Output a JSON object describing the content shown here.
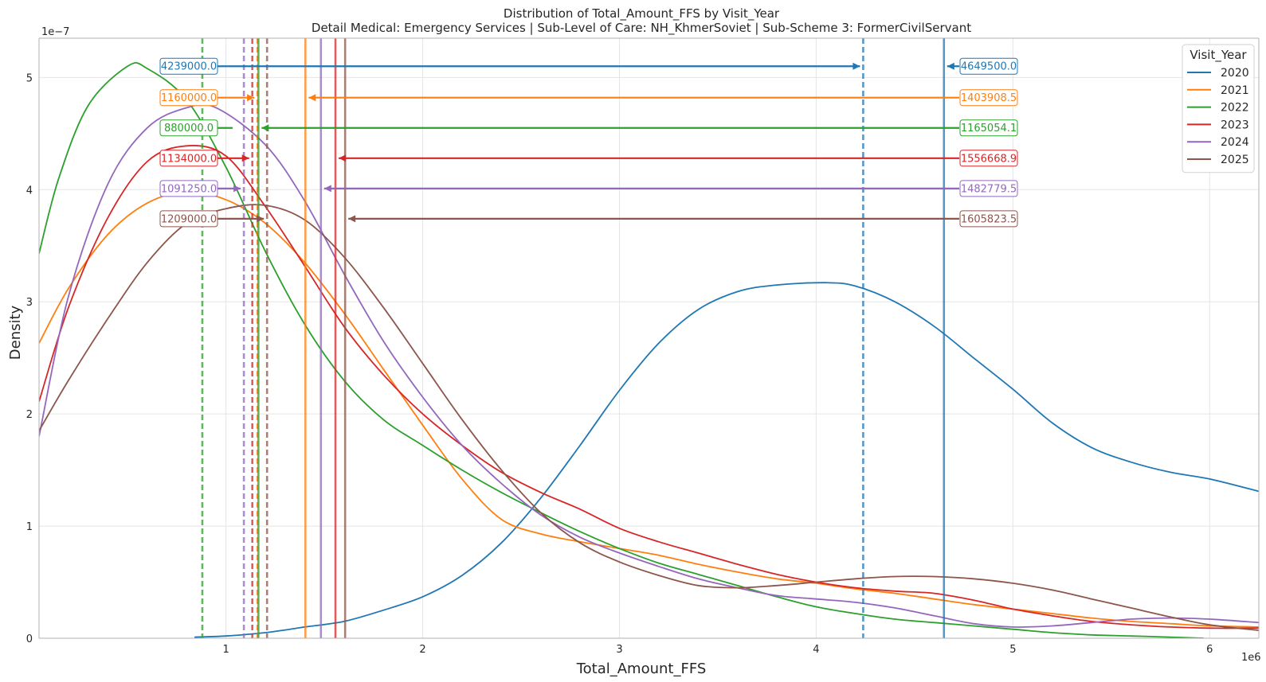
{
  "chart_data": {
    "type": "line",
    "title": "Distribution of Total_Amount_FFS by Visit_Year",
    "subtitle": "Detail Medical: Emergency Services | Sub-Level of Care: NH_KhmerSoviet | Sub-Scheme 3: FormerCivilServant",
    "xlabel": "Total_Amount_FFS",
    "ylabel": "Density",
    "x_scale_label": "1e6",
    "y_scale_label": "1e−7",
    "xlim": [
      0.05,
      6.25
    ],
    "ylim": [
      0,
      5.35
    ],
    "x_ticks": [
      1,
      2,
      3,
      4,
      5,
      6
    ],
    "x_tick_labels": [
      "1",
      "2",
      "3",
      "4",
      "5",
      "6"
    ],
    "y_ticks": [
      0,
      1,
      2,
      3,
      4,
      5
    ],
    "y_tick_labels": [
      "0",
      "1",
      "2",
      "3",
      "4",
      "5"
    ],
    "grid": true,
    "legend": {
      "title": "Visit_Year",
      "position": "top-right"
    },
    "series": [
      {
        "name": "2020",
        "color": "#1f77b4",
        "median": 4239000.0,
        "mean": 4649500.0,
        "median_label": "4239000.0",
        "mean_label": "4649500.0",
        "arrow_y": 5.1,
        "points": [
          [
            0.84,
            0.01
          ],
          [
            1.0,
            0.02
          ],
          [
            1.2,
            0.05
          ],
          [
            1.4,
            0.1
          ],
          [
            1.6,
            0.15
          ],
          [
            1.8,
            0.25
          ],
          [
            2.0,
            0.37
          ],
          [
            2.2,
            0.56
          ],
          [
            2.4,
            0.85
          ],
          [
            2.6,
            1.25
          ],
          [
            2.8,
            1.72
          ],
          [
            3.0,
            2.21
          ],
          [
            3.2,
            2.63
          ],
          [
            3.4,
            2.93
          ],
          [
            3.6,
            3.09
          ],
          [
            3.8,
            3.15
          ],
          [
            4.05,
            3.17
          ],
          [
            4.2,
            3.14
          ],
          [
            4.4,
            3.0
          ],
          [
            4.6,
            2.78
          ],
          [
            4.8,
            2.5
          ],
          [
            5.0,
            2.22
          ],
          [
            5.2,
            1.92
          ],
          [
            5.4,
            1.7
          ],
          [
            5.6,
            1.57
          ],
          [
            5.8,
            1.48
          ],
          [
            6.0,
            1.42
          ],
          [
            6.25,
            1.31
          ]
        ]
      },
      {
        "name": "2021",
        "color": "#ff7f0e",
        "median": 1160000.0,
        "mean": 1403908.5,
        "median_label": "1160000.0",
        "mean_label": "1403908.5",
        "arrow_y": 4.82,
        "points": [
          [
            0.05,
            2.63
          ],
          [
            0.2,
            3.12
          ],
          [
            0.4,
            3.6
          ],
          [
            0.6,
            3.88
          ],
          [
            0.8,
            3.98
          ],
          [
            1.0,
            3.91
          ],
          [
            1.2,
            3.7
          ],
          [
            1.4,
            3.35
          ],
          [
            1.6,
            2.9
          ],
          [
            1.8,
            2.4
          ],
          [
            2.0,
            1.9
          ],
          [
            2.2,
            1.42
          ],
          [
            2.4,
            1.06
          ],
          [
            2.6,
            0.93
          ],
          [
            2.8,
            0.86
          ],
          [
            3.0,
            0.8
          ],
          [
            3.2,
            0.74
          ],
          [
            3.4,
            0.66
          ],
          [
            3.6,
            0.59
          ],
          [
            3.8,
            0.53
          ],
          [
            4.0,
            0.49
          ],
          [
            4.2,
            0.44
          ],
          [
            4.4,
            0.4
          ],
          [
            4.6,
            0.35
          ],
          [
            4.8,
            0.3
          ],
          [
            5.0,
            0.26
          ],
          [
            5.2,
            0.22
          ],
          [
            5.4,
            0.18
          ],
          [
            5.6,
            0.15
          ],
          [
            5.8,
            0.13
          ],
          [
            6.0,
            0.11
          ],
          [
            6.25,
            0.1
          ]
        ]
      },
      {
        "name": "2022",
        "color": "#2ca02c",
        "median": 880000.0,
        "mean": 1165054.1,
        "median_label": "880000.0",
        "mean_label": "1165054.1",
        "arrow_y": 4.55,
        "points": [
          [
            0.05,
            3.43
          ],
          [
            0.15,
            4.1
          ],
          [
            0.3,
            4.75
          ],
          [
            0.5,
            5.1
          ],
          [
            0.6,
            5.08
          ],
          [
            0.8,
            4.8
          ],
          [
            1.0,
            4.2
          ],
          [
            1.2,
            3.45
          ],
          [
            1.4,
            2.8
          ],
          [
            1.6,
            2.3
          ],
          [
            1.8,
            1.95
          ],
          [
            2.0,
            1.72
          ],
          [
            2.2,
            1.5
          ],
          [
            2.4,
            1.3
          ],
          [
            2.6,
            1.12
          ],
          [
            2.8,
            0.95
          ],
          [
            3.0,
            0.8
          ],
          [
            3.2,
            0.67
          ],
          [
            3.4,
            0.57
          ],
          [
            3.6,
            0.47
          ],
          [
            3.8,
            0.37
          ],
          [
            4.0,
            0.28
          ],
          [
            4.2,
            0.22
          ],
          [
            4.4,
            0.17
          ],
          [
            4.6,
            0.14
          ],
          [
            4.8,
            0.11
          ],
          [
            5.0,
            0.08
          ],
          [
            5.2,
            0.05
          ],
          [
            5.4,
            0.03
          ],
          [
            5.6,
            0.02
          ],
          [
            5.8,
            0.01
          ],
          [
            5.97,
            0.0
          ]
        ]
      },
      {
        "name": "2023",
        "color": "#d62728",
        "median": 1134000.0,
        "mean": 1556668.9,
        "median_label": "1134000.0",
        "mean_label": "1556668.9",
        "arrow_y": 4.28,
        "points": [
          [
            0.05,
            2.11
          ],
          [
            0.2,
            2.95
          ],
          [
            0.4,
            3.75
          ],
          [
            0.6,
            4.25
          ],
          [
            0.8,
            4.39
          ],
          [
            1.0,
            4.3
          ],
          [
            1.2,
            3.85
          ],
          [
            1.4,
            3.32
          ],
          [
            1.6,
            2.78
          ],
          [
            1.8,
            2.35
          ],
          [
            2.0,
            2.0
          ],
          [
            2.2,
            1.72
          ],
          [
            2.4,
            1.48
          ],
          [
            2.6,
            1.3
          ],
          [
            2.8,
            1.15
          ],
          [
            3.0,
            0.98
          ],
          [
            3.2,
            0.86
          ],
          [
            3.4,
            0.76
          ],
          [
            3.6,
            0.66
          ],
          [
            3.8,
            0.57
          ],
          [
            4.0,
            0.5
          ],
          [
            4.2,
            0.45
          ],
          [
            4.4,
            0.42
          ],
          [
            4.6,
            0.4
          ],
          [
            4.8,
            0.34
          ],
          [
            5.0,
            0.26
          ],
          [
            5.2,
            0.2
          ],
          [
            5.4,
            0.15
          ],
          [
            5.6,
            0.12
          ],
          [
            5.8,
            0.1
          ],
          [
            6.0,
            0.09
          ],
          [
            6.25,
            0.09
          ]
        ]
      },
      {
        "name": "2024",
        "color": "#9467bd",
        "median": 1091250.0,
        "mean": 1482779.5,
        "median_label": "1091250.0",
        "mean_label": "1482779.5",
        "arrow_y": 4.01,
        "points": [
          [
            0.05,
            1.8
          ],
          [
            0.2,
            3.05
          ],
          [
            0.4,
            4.05
          ],
          [
            0.6,
            4.55
          ],
          [
            0.8,
            4.73
          ],
          [
            0.95,
            4.73
          ],
          [
            1.2,
            4.4
          ],
          [
            1.4,
            3.9
          ],
          [
            1.6,
            3.25
          ],
          [
            1.8,
            2.65
          ],
          [
            2.0,
            2.15
          ],
          [
            2.2,
            1.72
          ],
          [
            2.4,
            1.38
          ],
          [
            2.6,
            1.1
          ],
          [
            2.8,
            0.9
          ],
          [
            3.0,
            0.76
          ],
          [
            3.2,
            0.64
          ],
          [
            3.4,
            0.53
          ],
          [
            3.6,
            0.45
          ],
          [
            3.8,
            0.38
          ],
          [
            4.0,
            0.35
          ],
          [
            4.2,
            0.32
          ],
          [
            4.4,
            0.27
          ],
          [
            4.6,
            0.2
          ],
          [
            4.8,
            0.13
          ],
          [
            5.0,
            0.1
          ],
          [
            5.2,
            0.11
          ],
          [
            5.4,
            0.14
          ],
          [
            5.6,
            0.17
          ],
          [
            5.8,
            0.18
          ],
          [
            6.0,
            0.17
          ],
          [
            6.25,
            0.14
          ]
        ]
      },
      {
        "name": "2025",
        "color": "#8c564b",
        "median": 1209000.0,
        "mean": 1605823.5,
        "median_label": "1209000.0",
        "mean_label": "1605823.5",
        "arrow_y": 3.74,
        "points": [
          [
            0.05,
            1.85
          ],
          [
            0.2,
            2.3
          ],
          [
            0.4,
            2.85
          ],
          [
            0.6,
            3.35
          ],
          [
            0.8,
            3.7
          ],
          [
            1.0,
            3.83
          ],
          [
            1.2,
            3.86
          ],
          [
            1.4,
            3.73
          ],
          [
            1.6,
            3.4
          ],
          [
            1.8,
            2.95
          ],
          [
            2.0,
            2.45
          ],
          [
            2.2,
            1.95
          ],
          [
            2.4,
            1.5
          ],
          [
            2.6,
            1.12
          ],
          [
            2.8,
            0.85
          ],
          [
            3.0,
            0.68
          ],
          [
            3.2,
            0.56
          ],
          [
            3.4,
            0.47
          ],
          [
            3.6,
            0.45
          ],
          [
            3.8,
            0.47
          ],
          [
            4.0,
            0.5
          ],
          [
            4.2,
            0.53
          ],
          [
            4.4,
            0.55
          ],
          [
            4.6,
            0.55
          ],
          [
            4.8,
            0.53
          ],
          [
            5.0,
            0.49
          ],
          [
            5.2,
            0.43
          ],
          [
            5.4,
            0.35
          ],
          [
            5.6,
            0.27
          ],
          [
            5.8,
            0.19
          ],
          [
            6.0,
            0.12
          ],
          [
            6.25,
            0.07
          ]
        ]
      }
    ]
  }
}
